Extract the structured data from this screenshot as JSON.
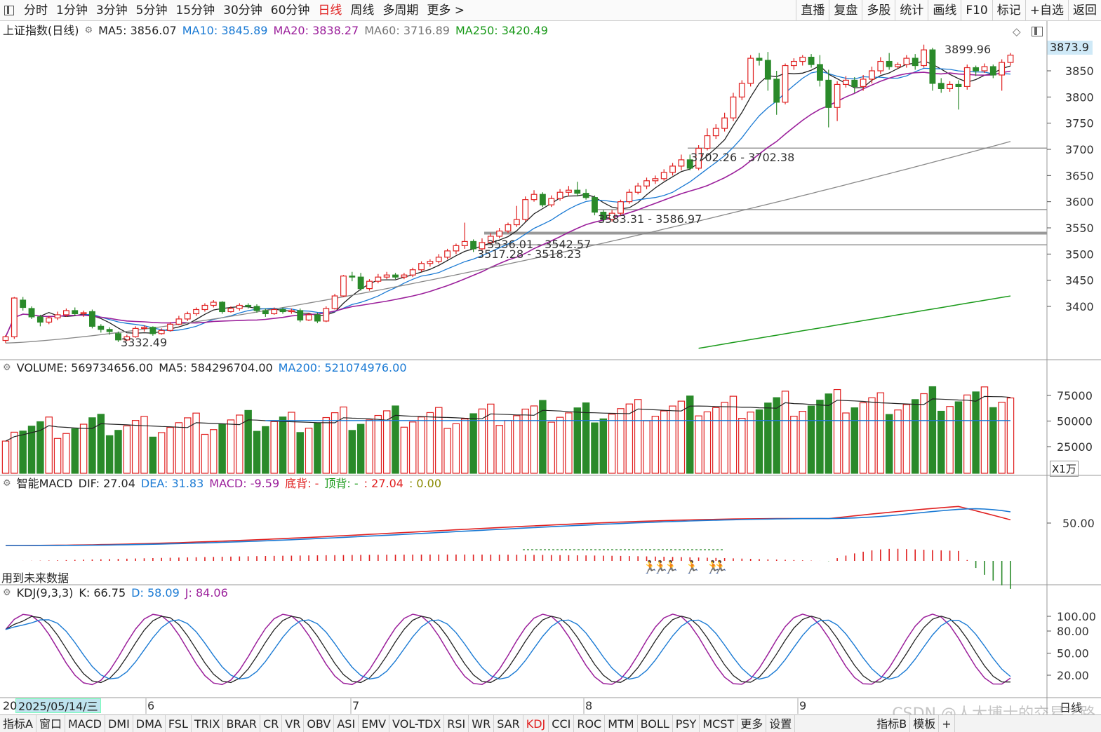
{
  "toolbar": {
    "tabs": [
      "分时",
      "1分钟",
      "3分钟",
      "5分钟",
      "15分钟",
      "30分钟",
      "60分钟",
      "日线",
      "周线",
      "多周期",
      "更多 >"
    ],
    "active_tab": "日线",
    "right_buttons": [
      "直播",
      "复盘",
      "多股",
      "统计",
      "画线",
      "F10",
      "标记",
      "+自选",
      "返回"
    ]
  },
  "main_panel": {
    "title": "上证指数(日线)",
    "ma5": "MA5: 3856.07",
    "ma10": "MA10: 3845.89",
    "ma20": "MA20: 3838.27",
    "ma60": "MA60: 3716.89",
    "ma250": "MA250: 3420.49",
    "current_price": "3873.9",
    "annotations": {
      "high": "3899.96",
      "low": "3332.49",
      "gap1": "3702.26 - 3702.38",
      "gap2": "3583.31 - 3586.97",
      "gap3": "3536.01 - 3542.57",
      "gap4": "3517.28 - 3518.23"
    },
    "y_ticks": [
      "3850",
      "3800",
      "3750",
      "3700",
      "3650",
      "3600",
      "3550",
      "3500",
      "3450",
      "3400"
    ]
  },
  "volume_panel": {
    "label": "VOLUME: 569734656.00",
    "ma5": "MA5: 584296704.00",
    "ma200": "MA200: 521074976.00",
    "y_ticks": [
      "75000",
      "50000",
      "25000"
    ],
    "unit": "X1万"
  },
  "macd_panel": {
    "title": "智能MACD",
    "dif": "DIF: 27.04",
    "dea": "DEA: 31.83",
    "macd": "MACD: -9.59",
    "bottom_div": "底背: -",
    "top_div": "顶背: -",
    "extra1": ": 27.04",
    "extra2": ": 0.00",
    "y_tick": "50.00",
    "note": "用到未来数据"
  },
  "kdj_panel": {
    "title": "KDJ(9,3,3)",
    "k": "K: 66.75",
    "d": "D: 58.09",
    "j": "J: 84.06",
    "y_ticks": [
      "100.00",
      "80.00",
      "50.00",
      "20.00"
    ]
  },
  "date_axis": {
    "selected_date": "2025/05/14/三",
    "prefix": "20",
    "month_labels": [
      "6",
      "7",
      "8",
      "9"
    ],
    "period": "日线"
  },
  "indicators": [
    "指标A",
    "窗口",
    "MACD",
    "DMI",
    "DMA",
    "FSL",
    "TRIX",
    "BRAR",
    "CR",
    "VR",
    "OBV",
    "ASI",
    "EMV",
    "VOL-TDX",
    "RSI",
    "WR",
    "SAR",
    "KDJ",
    "CCI",
    "ROC",
    "MTM",
    "BOLL",
    "PSY",
    "MCST",
    "更多",
    "设置",
    "指标B",
    "模板",
    "+"
  ],
  "active_indicator": "KDJ",
  "watermark": "CSDN @人大博士的交易之路",
  "colors": {
    "up": "#e02020",
    "down": "#2a8a2a",
    "ma5": "#222222",
    "ma10": "#1a7ad4",
    "ma20": "#9b1f9b",
    "ma60": "#888888",
    "ma250": "#1a9a1a"
  },
  "chart_data": {
    "type": "candlestick",
    "y_range": [
      3300,
      3910
    ],
    "candles": [
      [
        3335,
        3342,
        3330,
        3345
      ],
      [
        3342,
        3416,
        3338,
        3418
      ],
      [
        3412,
        3398,
        3392,
        3418
      ],
      [
        3396,
        3380,
        3376,
        3400
      ],
      [
        3380,
        3370,
        3362,
        3384
      ],
      [
        3370,
        3378,
        3366,
        3382
      ],
      [
        3378,
        3384,
        3374,
        3390
      ],
      [
        3384,
        3392,
        3380,
        3396
      ],
      [
        3392,
        3386,
        3382,
        3398
      ],
      [
        3386,
        3388,
        3380,
        3392
      ],
      [
        3390,
        3362,
        3358,
        3394
      ],
      [
        3362,
        3356,
        3350,
        3366
      ],
      [
        3356,
        3352,
        3346,
        3360
      ],
      [
        3348,
        3336,
        3332,
        3352
      ],
      [
        3336,
        3342,
        3334,
        3346
      ],
      [
        3342,
        3358,
        3340,
        3362
      ],
      [
        3358,
        3360,
        3352,
        3364
      ],
      [
        3360,
        3348,
        3344,
        3362
      ],
      [
        3348,
        3354,
        3346,
        3358
      ],
      [
        3354,
        3366,
        3352,
        3370
      ],
      [
        3366,
        3376,
        3364,
        3382
      ],
      [
        3376,
        3386,
        3372,
        3390
      ],
      [
        3386,
        3394,
        3382,
        3398
      ],
      [
        3394,
        3402,
        3390,
        3406
      ],
      [
        3402,
        3408,
        3398,
        3412
      ],
      [
        3408,
        3390,
        3386,
        3410
      ],
      [
        3390,
        3396,
        3388,
        3400
      ],
      [
        3396,
        3402,
        3392,
        3406
      ],
      [
        3402,
        3400,
        3396,
        3406
      ],
      [
        3400,
        3392,
        3388,
        3404
      ],
      [
        3392,
        3386,
        3380,
        3396
      ],
      [
        3386,
        3394,
        3384,
        3398
      ],
      [
        3394,
        3390,
        3386,
        3398
      ],
      [
        3390,
        3392,
        3386,
        3396
      ],
      [
        3392,
        3374,
        3370,
        3396
      ],
      [
        3374,
        3384,
        3372,
        3388
      ],
      [
        3384,
        3372,
        3368,
        3388
      ],
      [
        3372,
        3396,
        3370,
        3400
      ],
      [
        3396,
        3420,
        3394,
        3424
      ],
      [
        3420,
        3458,
        3418,
        3460
      ],
      [
        3458,
        3456,
        3448,
        3466
      ],
      [
        3456,
        3434,
        3430,
        3464
      ],
      [
        3434,
        3448,
        3430,
        3452
      ],
      [
        3448,
        3456,
        3444,
        3462
      ],
      [
        3456,
        3460,
        3452,
        3466
      ],
      [
        3460,
        3456,
        3452,
        3464
      ],
      [
        3456,
        3460,
        3452,
        3464
      ],
      [
        3460,
        3470,
        3456,
        3474
      ],
      [
        3470,
        3482,
        3466,
        3486
      ],
      [
        3482,
        3486,
        3476,
        3490
      ],
      [
        3486,
        3494,
        3482,
        3500
      ],
      [
        3494,
        3506,
        3490,
        3510
      ],
      [
        3506,
        3516,
        3500,
        3520
      ],
      [
        3516,
        3524,
        3510,
        3560
      ],
      [
        3524,
        3510,
        3504,
        3528
      ],
      [
        3510,
        3522,
        3506,
        3530
      ],
      [
        3522,
        3534,
        3518,
        3540
      ],
      [
        3534,
        3544,
        3530,
        3550
      ],
      [
        3544,
        3556,
        3540,
        3560
      ],
      [
        3556,
        3566,
        3552,
        3592
      ],
      [
        3566,
        3604,
        3562,
        3610
      ],
      [
        3604,
        3614,
        3600,
        3622
      ],
      [
        3614,
        3594,
        3590,
        3618
      ],
      [
        3594,
        3606,
        3590,
        3612
      ],
      [
        3606,
        3618,
        3602,
        3624
      ],
      [
        3618,
        3622,
        3610,
        3630
      ],
      [
        3622,
        3616,
        3610,
        3638
      ],
      [
        3616,
        3608,
        3604,
        3624
      ],
      [
        3608,
        3580,
        3574,
        3612
      ],
      [
        3580,
        3566,
        3560,
        3584
      ],
      [
        3566,
        3578,
        3562,
        3584
      ],
      [
        3578,
        3600,
        3574,
        3604
      ],
      [
        3600,
        3618,
        3596,
        3624
      ],
      [
        3618,
        3630,
        3614,
        3636
      ],
      [
        3630,
        3640,
        3624,
        3646
      ],
      [
        3640,
        3644,
        3634,
        3650
      ],
      [
        3644,
        3656,
        3640,
        3662
      ],
      [
        3656,
        3668,
        3650,
        3674
      ],
      [
        3668,
        3680,
        3660,
        3690
      ],
      [
        3680,
        3664,
        3660,
        3690
      ],
      [
        3664,
        3702,
        3660,
        3708
      ],
      [
        3702,
        3726,
        3698,
        3740
      ],
      [
        3726,
        3740,
        3720,
        3748
      ],
      [
        3740,
        3760,
        3734,
        3770
      ],
      [
        3760,
        3800,
        3754,
        3808
      ],
      [
        3800,
        3826,
        3794,
        3832
      ],
      [
        3826,
        3874,
        3820,
        3880
      ],
      [
        3874,
        3870,
        3860,
        3884
      ],
      [
        3870,
        3834,
        3812,
        3886
      ],
      [
        3834,
        3790,
        3766,
        3850
      ],
      [
        3790,
        3860,
        3786,
        3864
      ],
      [
        3860,
        3868,
        3852,
        3874
      ],
      [
        3868,
        3876,
        3860,
        3880
      ],
      [
        3876,
        3862,
        3856,
        3882
      ],
      [
        3862,
        3832,
        3820,
        3880
      ],
      [
        3832,
        3780,
        3742,
        3852
      ],
      [
        3780,
        3824,
        3754,
        3830
      ],
      [
        3824,
        3832,
        3818,
        3840
      ],
      [
        3832,
        3820,
        3808,
        3838
      ],
      [
        3820,
        3834,
        3812,
        3842
      ],
      [
        3834,
        3850,
        3826,
        3858
      ],
      [
        3850,
        3868,
        3844,
        3876
      ],
      [
        3868,
        3858,
        3852,
        3884
      ],
      [
        3858,
        3862,
        3854,
        3866
      ],
      [
        3862,
        3874,
        3856,
        3880
      ],
      [
        3874,
        3860,
        3852,
        3882
      ],
      [
        3860,
        3890,
        3856,
        3900
      ],
      [
        3890,
        3826,
        3812,
        3894
      ],
      [
        3826,
        3816,
        3808,
        3836
      ],
      [
        3816,
        3824,
        3810,
        3830
      ],
      [
        3824,
        3820,
        3776,
        3832
      ],
      [
        3820,
        3856,
        3814,
        3862
      ],
      [
        3856,
        3850,
        3840,
        3860
      ],
      [
        3850,
        3858,
        3846,
        3864
      ],
      [
        3858,
        3842,
        3836,
        3862
      ],
      [
        3842,
        3866,
        3812,
        3872
      ],
      [
        3866,
        3880,
        3860,
        3884
      ]
    ]
  }
}
